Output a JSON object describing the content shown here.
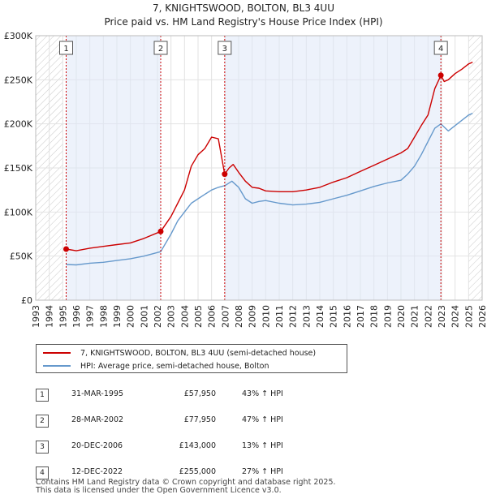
{
  "chart_data": {
    "type": "line",
    "title": "7, KNIGHTSWOOD, BOLTON, BL3 4UU",
    "subtitle": "Price paid vs. HM Land Registry's House Price Index (HPI)",
    "xlim": [
      1993,
      2026
    ],
    "ylim": [
      0,
      300000
    ],
    "y_ticks": [
      0,
      50000,
      100000,
      150000,
      200000,
      250000,
      300000
    ],
    "y_tick_labels": [
      "£0",
      "£50K",
      "£100K",
      "£150K",
      "£200K",
      "£250K",
      "£300K"
    ],
    "x_ticks": [
      1993,
      1994,
      1995,
      1996,
      1997,
      1998,
      1999,
      2000,
      2001,
      2002,
      2003,
      2004,
      2005,
      2006,
      2007,
      2008,
      2009,
      2010,
      2011,
      2012,
      2013,
      2014,
      2015,
      2016,
      2017,
      2018,
      2019,
      2020,
      2021,
      2022,
      2023,
      2024,
      2025,
      2026
    ],
    "grid": true,
    "hatched_before": 1995.0,
    "hatched_after": 2025.0,
    "shaded_spans": [
      [
        1995.25,
        2002.24
      ],
      [
        2006.97,
        2022.95
      ]
    ],
    "series": [
      {
        "name": "7, KNIGHTSWOOD, BOLTON, BL3 4UU (semi-detached house)",
        "color": "#cc0000",
        "x": [
          1995.25,
          1996,
          1997,
          1998,
          1999,
          2000,
          2001,
          2002.24,
          2003,
          2003.5,
          2004,
          2004.5,
          2005,
          2005.5,
          2006,
          2006.5,
          2006.97,
          2007.3,
          2007.6,
          2008,
          2008.5,
          2009,
          2009.5,
          2010,
          2011,
          2012,
          2013,
          2014,
          2015,
          2016,
          2017,
          2018,
          2019,
          2020,
          2020.5,
          2021,
          2021.5,
          2022,
          2022.5,
          2022.95,
          2023.2,
          2023.5,
          2024,
          2024.5,
          2025,
          2025.3
        ],
        "y": [
          57950,
          56000,
          59000,
          61000,
          63000,
          65000,
          70000,
          77950,
          95000,
          110000,
          125000,
          152000,
          165000,
          172000,
          185000,
          183000,
          143000,
          150000,
          154000,
          145000,
          135000,
          128000,
          127000,
          124000,
          123000,
          123000,
          125000,
          128000,
          134000,
          139000,
          146000,
          153000,
          160000,
          167000,
          172000,
          185000,
          198000,
          210000,
          240000,
          255000,
          248000,
          250000,
          257000,
          262000,
          268000,
          270000
        ]
      },
      {
        "name": "HPI: Average price, semi-detached house, Bolton",
        "color": "#6699cc",
        "x": [
          1995.25,
          1996,
          1997,
          1998,
          1999,
          2000,
          2001,
          2002.24,
          2003,
          2003.5,
          2004,
          2004.5,
          2005,
          2005.5,
          2006,
          2006.5,
          2007,
          2007.5,
          2008,
          2008.5,
          2009,
          2009.5,
          2010,
          2011,
          2012,
          2013,
          2014,
          2015,
          2016,
          2017,
          2018,
          2019,
          2020,
          2020.5,
          2021,
          2021.5,
          2022,
          2022.5,
          2022.95,
          2023.5,
          2024,
          2024.5,
          2025,
          2025.3
        ],
        "y": [
          40500,
          40000,
          42000,
          43000,
          45000,
          47000,
          50000,
          55000,
          75000,
          90000,
          100000,
          110000,
          115000,
          120000,
          125000,
          128000,
          130000,
          135000,
          128000,
          115000,
          110000,
          112000,
          113000,
          110000,
          108000,
          109000,
          111000,
          115000,
          119000,
          124000,
          129000,
          133000,
          136000,
          143000,
          152000,
          165000,
          180000,
          195000,
          200000,
          192000,
          198000,
          204000,
          210000,
          212000
        ]
      }
    ],
    "markers": [
      {
        "label": "1",
        "x": 1995.25,
        "y": 57950
      },
      {
        "label": "2",
        "x": 2002.24,
        "y": 77950
      },
      {
        "label": "3",
        "x": 2006.97,
        "y": 143000
      },
      {
        "label": "4",
        "x": 2022.95,
        "y": 255000
      }
    ]
  },
  "sales": [
    {
      "num": "1",
      "date": "31-MAR-1995",
      "price": "£57,950",
      "hpi": "43% ↑ HPI"
    },
    {
      "num": "2",
      "date": "28-MAR-2002",
      "price": "£77,950",
      "hpi": "47% ↑ HPI"
    },
    {
      "num": "3",
      "date": "20-DEC-2006",
      "price": "£143,000",
      "hpi": "13% ↑ HPI"
    },
    {
      "num": "4",
      "date": "12-DEC-2022",
      "price": "£255,000",
      "hpi": "27% ↑ HPI"
    }
  ],
  "legend": {
    "property": "7, KNIGHTSWOOD, BOLTON, BL3 4UU (semi-detached house)",
    "hpi": "HPI: Average price, semi-detached house, Bolton"
  },
  "footer": {
    "line1": "Contains HM Land Registry data © Crown copyright and database right 2025.",
    "line2": "This data is licensed under the Open Government Licence v3.0."
  }
}
